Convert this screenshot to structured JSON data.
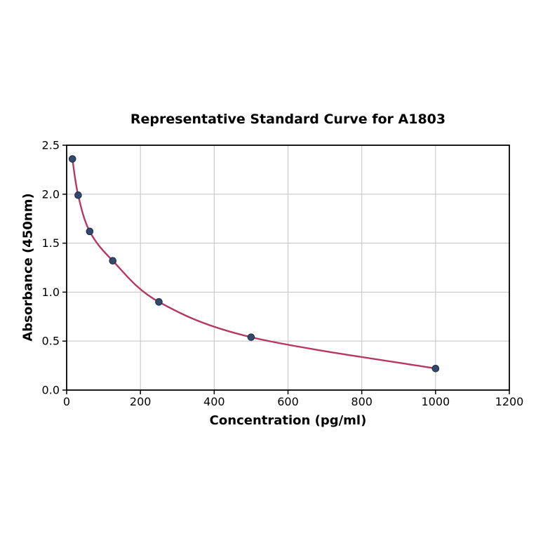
{
  "chart_data": {
    "type": "scatter",
    "title": "Representative Standard Curve for A1803",
    "xlabel": "Concentration (pg/ml)",
    "ylabel": "Absorbance (450nm)",
    "xlim": [
      0,
      1200
    ],
    "ylim": [
      0.0,
      2.5
    ],
    "x_ticks": [
      0,
      200,
      400,
      600,
      800,
      1000,
      1200
    ],
    "x_tick_labels": [
      "0",
      "200",
      "400",
      "600",
      "800",
      "1000",
      "1200"
    ],
    "y_ticks": [
      0.0,
      0.5,
      1.0,
      1.5,
      2.0,
      2.5
    ],
    "y_tick_labels": [
      "0.0",
      "0.5",
      "1.0",
      "1.5",
      "2.0",
      "2.5"
    ],
    "grid": true,
    "legend_position": "none",
    "series": [
      {
        "name": "standard-points",
        "style": "markers",
        "x": [
          15.6,
          31.2,
          62.5,
          125,
          250,
          500,
          1000
        ],
        "y": [
          2.36,
          1.99,
          1.62,
          1.32,
          0.9,
          0.54,
          0.22
        ]
      },
      {
        "name": "fitted-curve",
        "style": "smooth-line",
        "through": "standard-points"
      }
    ],
    "colors": {
      "curve": "#b73763",
      "marker_fill": "#33496b",
      "marker_edge": "#1c2c45",
      "grid": "#c8c8c8",
      "axis": "#000000",
      "text": "#000000",
      "background": "#ffffff"
    }
  }
}
